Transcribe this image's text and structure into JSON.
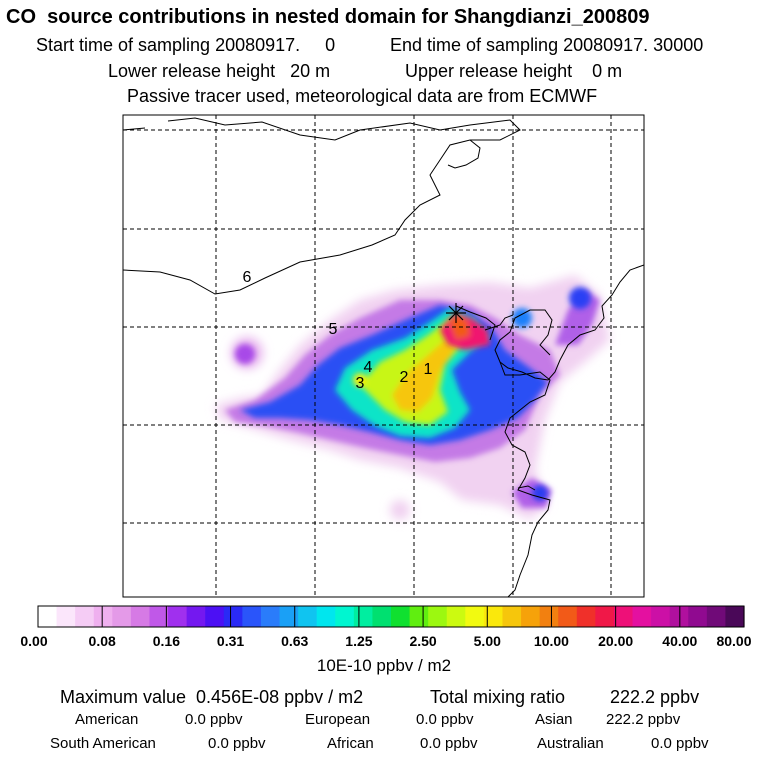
{
  "header": {
    "title": "CO  source contributions in nested domain for Shangdianzi_200809",
    "start_time": "Start time of sampling 20080917.     0",
    "end_time": "End time of sampling 20080917. 30000",
    "lower_release": "Lower release height   20 m",
    "upper_release": "Upper release height    0 m",
    "tracer_note": "Passive tracer used, meteorological data are from ECMWF"
  },
  "chart_data": {
    "type": "heatmap",
    "region_labels": [
      "1",
      "2",
      "3",
      "4",
      "5",
      "6"
    ],
    "receptor": "Shangdianzi",
    "colorbar": {
      "tick_labels": [
        "0.00",
        "0.08",
        "0.16",
        "0.31",
        "0.63",
        "1.25",
        "2.50",
        "5.00",
        "10.00",
        "20.00",
        "40.00",
        "80.00"
      ],
      "unit_label": "10E-10 ppbv / m2",
      "colors": [
        "#ffffff",
        "#fbe6fb",
        "#f5ccf5",
        "#efb0ef",
        "#e49ae8",
        "#d67ae5",
        "#c058e8",
        "#a030ee",
        "#7418f0",
        "#4c10f4",
        "#2a2af6",
        "#2a55fa",
        "#2a7cfa",
        "#1aa0f6",
        "#10c4f0",
        "#00e6ee",
        "#00f6d0",
        "#00eea0",
        "#00e070",
        "#10e030",
        "#60ee10",
        "#9cf810",
        "#ccfa10",
        "#f2fa10",
        "#fae80c",
        "#f6c60c",
        "#f6a20a",
        "#f28010",
        "#f25a18",
        "#f0302a",
        "#f01848",
        "#ee1078",
        "#e410a0",
        "#cc10a6",
        "#b0109e",
        "#900a90",
        "#700a78",
        "#4a0858"
      ]
    }
  },
  "stats": {
    "max_label": "Maximum value  0.456E-08 ppbv / m2",
    "total_label": "Total mixing ratio",
    "total_value": "222.2 ppbv"
  },
  "regions": [
    {
      "name": "American",
      "value": "0.0 ppbv"
    },
    {
      "name": "European",
      "value": "0.0 ppbv"
    },
    {
      "name": "Asian",
      "value": "222.2 ppbv"
    },
    {
      "name": "South American",
      "value": "0.0 ppbv"
    },
    {
      "name": "African",
      "value": "0.0 ppbv"
    },
    {
      "name": "Australian",
      "value": "0.0 ppbv"
    }
  ]
}
